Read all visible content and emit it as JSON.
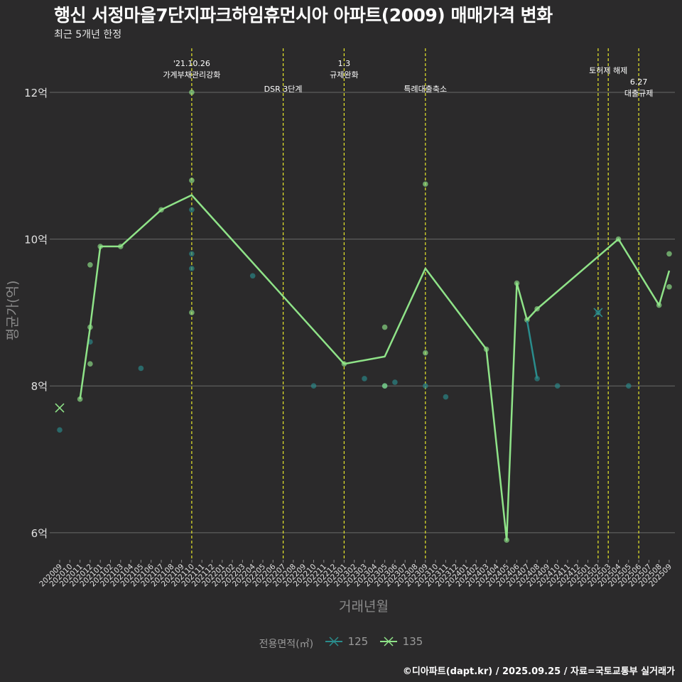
{
  "title": "행신 서정마을7단지파크하임휴먼시아 아파트(2009) 매매가격 변화",
  "subtitle": "최근 5개년 한정",
  "caption": "©디아파트(dapt.kr) / 2025.09.25 / 자료=국토교통부 실거래가",
  "chart_data": {
    "type": "line",
    "xlabel": "거래년월",
    "ylabel": "평균가(억)",
    "ylim": [
      5.65,
      12.6
    ],
    "yticks": [
      6,
      8,
      10,
      12
    ],
    "ytick_labels": [
      "6억",
      "8억",
      "10억",
      "12억"
    ],
    "x_categories": [
      "202009",
      "202010",
      "202011",
      "202012",
      "202101",
      "202102",
      "202103",
      "202104",
      "202105",
      "202106",
      "202107",
      "202108",
      "202109",
      "202110",
      "202111",
      "202112",
      "202201",
      "202202",
      "202203",
      "202204",
      "202205",
      "202206",
      "202207",
      "202208",
      "202209",
      "202210",
      "202211",
      "202212",
      "202301",
      "202302",
      "202303",
      "202304",
      "202305",
      "202306",
      "202307",
      "202308",
      "202309",
      "202310",
      "202311",
      "202312",
      "202401",
      "202402",
      "202403",
      "202404",
      "202405",
      "202406",
      "202407",
      "202408",
      "202409",
      "202410",
      "202411",
      "202412",
      "202501",
      "202502",
      "202503",
      "202504",
      "202505",
      "202506",
      "202507",
      "202508",
      "202509"
    ],
    "grid": true,
    "legend": {
      "title": "전용면적(㎡)",
      "placement": "bottom",
      "entries": [
        {
          "name": "125",
          "color": "#2a8c8c"
        },
        {
          "name": "135",
          "color": "#8fe388"
        }
      ]
    },
    "series": [
      {
        "name": "125",
        "color": "#2a8c8c",
        "line": [
          [
            "202408",
            8.1
          ],
          [
            "202407",
            8.9
          ]
        ],
        "points": [
          [
            "202009",
            7.4
          ],
          [
            "202012",
            8.6
          ],
          [
            "202105",
            8.24
          ],
          [
            "202110",
            10.4
          ],
          [
            "202110",
            9.8
          ],
          [
            "202110",
            9.6
          ],
          [
            "202204",
            9.5
          ],
          [
            "202210",
            8.0
          ],
          [
            "202303",
            8.1
          ],
          [
            "202305",
            8.0
          ],
          [
            "202306",
            8.05
          ],
          [
            "202309",
            8.0
          ],
          [
            "202311",
            7.85
          ],
          [
            "202408",
            8.1
          ],
          [
            "202410",
            8.0
          ],
          [
            "202502",
            9.0
          ],
          [
            "202505",
            8.0
          ]
        ],
        "cross_points": [
          [
            "202502",
            9.0
          ]
        ]
      },
      {
        "name": "135",
        "color": "#8fe388",
        "line": [
          [
            "202011",
            7.82
          ],
          [
            "202012",
            8.8
          ],
          [
            "202101",
            9.9
          ],
          [
            "202103",
            9.9
          ],
          [
            "202107",
            10.4
          ],
          [
            "202110",
            10.6
          ],
          [
            "202301",
            8.3
          ],
          [
            "202305",
            8.4
          ],
          [
            "202309",
            9.6
          ],
          [
            "202403",
            8.5
          ],
          [
            "202405",
            5.9
          ],
          [
            "202406",
            9.4
          ],
          [
            "202407",
            8.9
          ],
          [
            "202408",
            9.05
          ],
          [
            "202504",
            10.0
          ],
          [
            "202508",
            9.1
          ],
          [
            "202509",
            9.57
          ]
        ],
        "points": [
          [
            "202011",
            7.82
          ],
          [
            "202012",
            9.65
          ],
          [
            "202012",
            8.8
          ],
          [
            "202012",
            8.3
          ],
          [
            "202101",
            9.9
          ],
          [
            "202103",
            9.9
          ],
          [
            "202107",
            10.4
          ],
          [
            "202110",
            12.0
          ],
          [
            "202110",
            10.8
          ],
          [
            "202110",
            9.0
          ],
          [
            "202301",
            8.3
          ],
          [
            "202305",
            8.8
          ],
          [
            "202305",
            8.0
          ],
          [
            "202309",
            10.75
          ],
          [
            "202309",
            8.45
          ],
          [
            "202403",
            8.5
          ],
          [
            "202405",
            5.9
          ],
          [
            "202406",
            9.4
          ],
          [
            "202407",
            8.9
          ],
          [
            "202408",
            9.05
          ],
          [
            "202504",
            10.0
          ],
          [
            "202508",
            9.1
          ],
          [
            "202509",
            9.8
          ],
          [
            "202509",
            9.35
          ]
        ],
        "cross_points": [
          [
            "202009",
            7.7
          ]
        ]
      }
    ],
    "annotations": [
      {
        "x": "202110",
        "lines": [
          "'21.10.26",
          "가계부채관리강화"
        ],
        "level": "high"
      },
      {
        "x": "202207",
        "lines": [
          "DSR 3단계"
        ],
        "level": "low"
      },
      {
        "x": "202301",
        "lines": [
          "1.3",
          "규제완화"
        ],
        "level": "high"
      },
      {
        "x": "202309",
        "lines": [
          "특례대출축소"
        ],
        "level": "low"
      },
      {
        "x": "202502",
        "lines": [],
        "level": "none"
      },
      {
        "x": "202503",
        "lines": [
          "토허제 해제"
        ],
        "level": "mid"
      },
      {
        "x": "202506",
        "lines": [
          "6.27",
          "대출규제"
        ],
        "level": "lower"
      }
    ]
  }
}
